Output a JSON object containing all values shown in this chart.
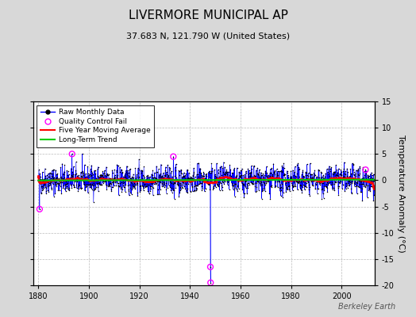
{
  "title": "LIVERMORE MUNICIPAL AP",
  "subtitle": "37.683 N, 121.790 W (United States)",
  "ylabel": "Temperature Anomaly (°C)",
  "watermark": "Berkeley Earth",
  "xlim": [
    1878,
    2013
  ],
  "ylim": [
    -20,
    15
  ],
  "yticks": [
    -20,
    -15,
    -10,
    -5,
    0,
    5,
    10,
    15
  ],
  "xticks": [
    1880,
    1900,
    1920,
    1940,
    1960,
    1980,
    2000
  ],
  "fig_bg_color": "#d8d8d8",
  "plot_bg_color": "#ffffff",
  "raw_line_color": "#0000ff",
  "raw_dot_color": "#000000",
  "qc_fail_color": "#ff00ff",
  "moving_avg_color": "#ff0000",
  "trend_color": "#00cc00",
  "seed": 42,
  "start_year": 1880,
  "end_year": 2012,
  "noise_std": 1.5,
  "qc_fail_points": [
    {
      "year": 1880,
      "month": 6,
      "value": -5.5
    },
    {
      "year": 1893,
      "month": 4,
      "value": 5.0
    },
    {
      "year": 1933,
      "month": 5,
      "value": 4.5
    },
    {
      "year": 1948,
      "month": 1,
      "value": -16.5
    },
    {
      "year": 1948,
      "month": 2,
      "value": -19.5
    },
    {
      "year": 2009,
      "month": 6,
      "value": 2.0
    }
  ],
  "spike_connect_year": 1948,
  "spike_connect_month": 0
}
